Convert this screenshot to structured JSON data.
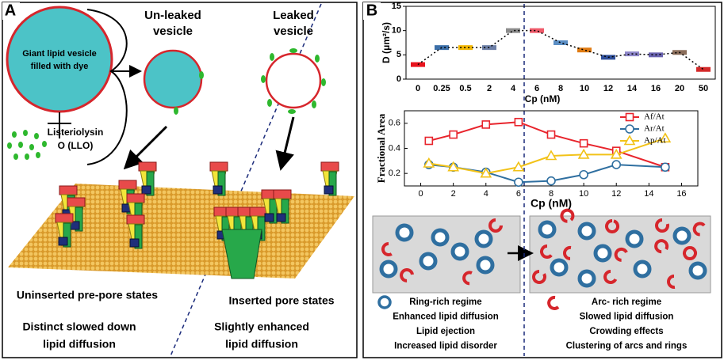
{
  "panel_labels": [
    "A",
    "B"
  ],
  "panel_a": {
    "giant_vesicle": [
      "Giant lipid vesicle",
      "filled with dye"
    ],
    "llo": [
      "Listeriolysin",
      "O (LLO)"
    ],
    "unleaked": [
      "Un-leaked",
      "vesicle"
    ],
    "leaked": [
      "Leaked",
      "vesicle"
    ],
    "left_state": "Uninserted pre-pore states",
    "right_state": "Inserted pore states",
    "left_effect": [
      "Distinct slowed down",
      "lipid diffusion"
    ],
    "right_effect": [
      "Slightly enhanced",
      "lipid diffusion"
    ]
  },
  "chart_data": [
    {
      "type": "line",
      "y_label": "D (μm²/s)",
      "x_label": "Cp (nM)",
      "categories": [
        "0",
        "0.25",
        "0.5",
        "2",
        "4",
        "6",
        "8",
        "10",
        "12",
        "14",
        "16",
        "20",
        "50"
      ],
      "values": [
        3,
        6.5,
        6.5,
        6.5,
        10,
        10,
        7.5,
        6,
        4.5,
        5.2,
        5,
        5.5,
        2
      ],
      "colors": [
        "#e8141e",
        "#3d6fa8",
        "#f2b705",
        "#6d7fa6",
        "#8c8c8c",
        "#f05a6a",
        "#5b8ec4",
        "#e07b12",
        "#2f4f9a",
        "#8d86c9",
        "#6a63b0",
        "#8a6d5a",
        "#d42a2a"
      ],
      "ylim": [
        0,
        15
      ],
      "yticks": [
        0,
        5,
        10,
        15
      ]
    },
    {
      "type": "line",
      "y_label": "Fractional Area",
      "x_label": "Cp (nM)",
      "x": [
        0.5,
        2,
        4,
        6,
        8,
        10,
        12,
        15
      ],
      "series": [
        {
          "name": "Af/At",
          "color": "#e8242c",
          "marker": "square",
          "values": [
            0.46,
            0.51,
            0.59,
            0.61,
            0.51,
            0.44,
            0.38,
            0.25
          ]
        },
        {
          "name": "Ar/At",
          "color": "#2f6fa0",
          "marker": "circle",
          "values": [
            0.27,
            0.25,
            0.21,
            0.13,
            0.14,
            0.19,
            0.27,
            0.25
          ]
        },
        {
          "name": "Ap/At",
          "color": "#f2c218",
          "marker": "triangle",
          "values": [
            0.28,
            0.25,
            0.2,
            0.25,
            0.34,
            0.35,
            0.35,
            0.48
          ]
        }
      ],
      "xlim": [
        -1,
        17
      ],
      "xticks": [
        0,
        2,
        4,
        6,
        8,
        10,
        12,
        14,
        16
      ],
      "ylim": [
        0.1,
        0.7
      ],
      "yticks": [
        0.2,
        0.4,
        0.6
      ]
    }
  ],
  "panel_b_regimes": {
    "left": [
      "Ring-rich regime",
      "Enhanced lipid diffusion",
      "Lipid ejection",
      "Increased lipid disorder"
    ],
    "right": [
      "Arc- rich regime",
      "Slowed lipid diffusion",
      "Crowding effects",
      "Clustering of arcs and rings"
    ]
  }
}
